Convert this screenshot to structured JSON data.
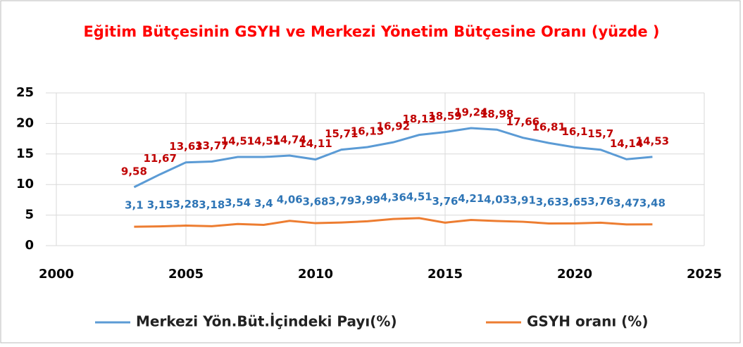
{
  "chart_data": {
    "type": "line",
    "title": "Eğitim Bütçesinin GSYH ve Merkezi Yönetim Bütçesine Oranı (yüzde )",
    "x": [
      2003,
      2004,
      2005,
      2006,
      2007,
      2008,
      2009,
      2010,
      2011,
      2012,
      2013,
      2014,
      2015,
      2016,
      2017,
      2018,
      2019,
      2020,
      2021,
      2022,
      2023
    ],
    "series": [
      {
        "name": "Merkezi Yön.Büt.İçindeki Payı(%)",
        "color": "#5b9bd5",
        "label_color": "#c00000",
        "values": [
          9.58,
          11.67,
          13.63,
          13.77,
          14.51,
          14.51,
          14.74,
          14.11,
          15.71,
          16.13,
          16.92,
          18.13,
          18.59,
          19.24,
          18.98,
          17.66,
          16.81,
          16.1,
          15.7,
          14.14,
          14.53
        ],
        "value_labels": [
          "9,58",
          "11,67",
          "13,63",
          "13,77",
          "14,51",
          "14,51",
          "14,74",
          "14,11",
          "15,71",
          "16,13",
          "16,92",
          "18,13",
          "18,59",
          "19,24",
          "18,98",
          "17,66",
          "16,81",
          "16,1",
          "15,7",
          "14,14",
          "14,53"
        ]
      },
      {
        "name": "GSYH oranı (%)",
        "color": "#ed7d31",
        "label_color": "#2e75b6",
        "values": [
          3.1,
          3.15,
          3.28,
          3.18,
          3.54,
          3.4,
          4.06,
          3.68,
          3.79,
          3.99,
          4.36,
          4.51,
          3.76,
          4.21,
          4.03,
          3.91,
          3.63,
          3.65,
          3.76,
          3.47,
          3.48
        ],
        "value_labels": [
          "3,1",
          "3,15",
          "3,28",
          "3,18",
          "3,54",
          "3,4",
          "4,06",
          "3,68",
          "3,79",
          "3,99",
          "4,36",
          "4,51",
          "3,76",
          "4,21",
          "4,03",
          "3,91",
          "3,63",
          "3,65",
          "3,76",
          "3,47",
          "3,48"
        ]
      }
    ],
    "xlim": [
      2000,
      2025
    ],
    "xticks": [
      2000,
      2005,
      2010,
      2015,
      2020,
      2025
    ],
    "ylim": [
      0,
      25
    ],
    "yticks": [
      0,
      5,
      10,
      15,
      20,
      25
    ],
    "grid": true,
    "legend": "bottom"
  }
}
